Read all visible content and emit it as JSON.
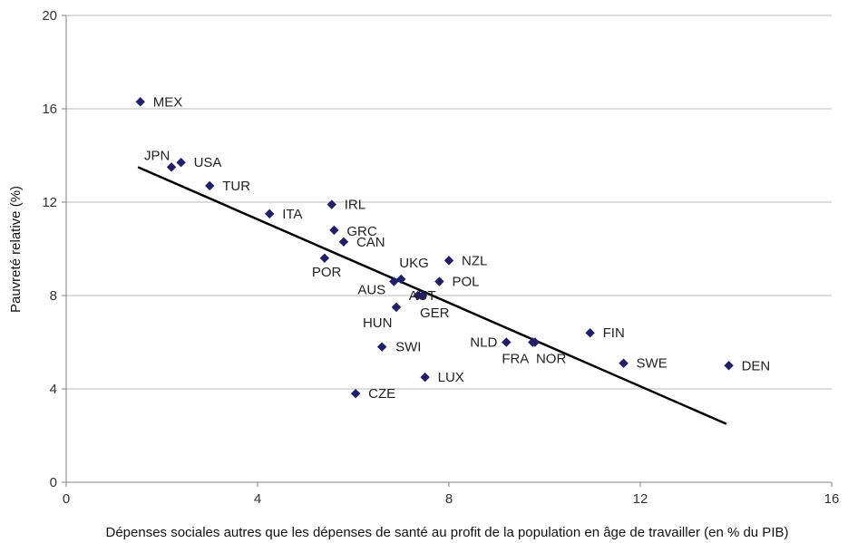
{
  "chart_data": {
    "type": "scatter",
    "title": "",
    "xlabel": "Dépenses sociales autres que les dépenses de santé au profit de la population en âge de travailler (en % du PIB)",
    "ylabel": "Pauvreté relative (%)",
    "xlim": [
      0,
      16
    ],
    "ylim": [
      0,
      20
    ],
    "xticks": [
      0,
      4,
      8,
      12,
      16
    ],
    "yticks": [
      0,
      4,
      8,
      12,
      16,
      20
    ],
    "grid": "horizontal",
    "marker_color": "#1f1f6b",
    "trendline": {
      "color": "#000000",
      "from": [
        1.5,
        13.5
      ],
      "to": [
        13.8,
        2.5
      ]
    },
    "points": [
      {
        "label": "MEX",
        "x": 1.55,
        "y": 16.3
      },
      {
        "label": "JPN",
        "x": 2.2,
        "y": 13.5
      },
      {
        "label": "USA",
        "x": 2.4,
        "y": 13.7
      },
      {
        "label": "TUR",
        "x": 3.0,
        "y": 12.7
      },
      {
        "label": "ITA",
        "x": 4.25,
        "y": 11.5
      },
      {
        "label": "IRL",
        "x": 5.55,
        "y": 11.9
      },
      {
        "label": "GRC",
        "x": 5.6,
        "y": 10.8
      },
      {
        "label": "CAN",
        "x": 5.8,
        "y": 10.3
      },
      {
        "label": "POR",
        "x": 5.4,
        "y": 9.6
      },
      {
        "label": "UKG",
        "x": 7.0,
        "y": 8.7
      },
      {
        "label": "NZL",
        "x": 8.0,
        "y": 9.5
      },
      {
        "label": "POL",
        "x": 7.8,
        "y": 8.6
      },
      {
        "label": "AUS",
        "x": 6.85,
        "y": 8.6
      },
      {
        "label": "AUT",
        "x": 7.35,
        "y": 8.0
      },
      {
        "label": "GER",
        "x": 7.45,
        "y": 8.0
      },
      {
        "label": "HUN",
        "x": 6.9,
        "y": 7.5
      },
      {
        "label": "SWI",
        "x": 6.6,
        "y": 5.8
      },
      {
        "label": "NLD",
        "x": 9.2,
        "y": 6.0
      },
      {
        "label": "FRA",
        "x": 9.75,
        "y": 6.0
      },
      {
        "label": "NOR",
        "x": 9.8,
        "y": 6.0
      },
      {
        "label": "FIN",
        "x": 10.95,
        "y": 6.4
      },
      {
        "label": "SWE",
        "x": 11.65,
        "y": 5.1
      },
      {
        "label": "DEN",
        "x": 13.85,
        "y": 5.0
      },
      {
        "label": "LUX",
        "x": 7.5,
        "y": 4.5
      },
      {
        "label": "CZE",
        "x": 6.05,
        "y": 3.8
      }
    ]
  }
}
